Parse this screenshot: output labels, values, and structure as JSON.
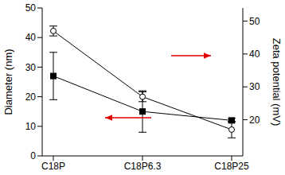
{
  "chart_data": {
    "type": "line",
    "categories": [
      "C18P",
      "C18P6.3",
      "C18P25"
    ],
    "ylabel": "Diameter (nm)",
    "y2label": "Zeta potential (mV)",
    "ylim": [
      0,
      50
    ],
    "yticks": [
      0,
      10,
      20,
      30,
      40,
      50
    ],
    "y2lim": [
      9,
      54
    ],
    "y2ticks": [
      20,
      30,
      40,
      50
    ],
    "grid": false,
    "series": [
      {
        "color": "#000000",
        "marker": "square",
        "axis": "y",
        "values": [
          27,
          15,
          12
        ],
        "error": [
          8,
          7,
          0.7
        ]
      },
      {
        "color": "#000000",
        "marker": "circle",
        "axis": "y2",
        "values": [
          47,
          27,
          17
        ],
        "error": [
          1.5,
          1.5,
          2.5
        ]
      }
    ]
  }
}
